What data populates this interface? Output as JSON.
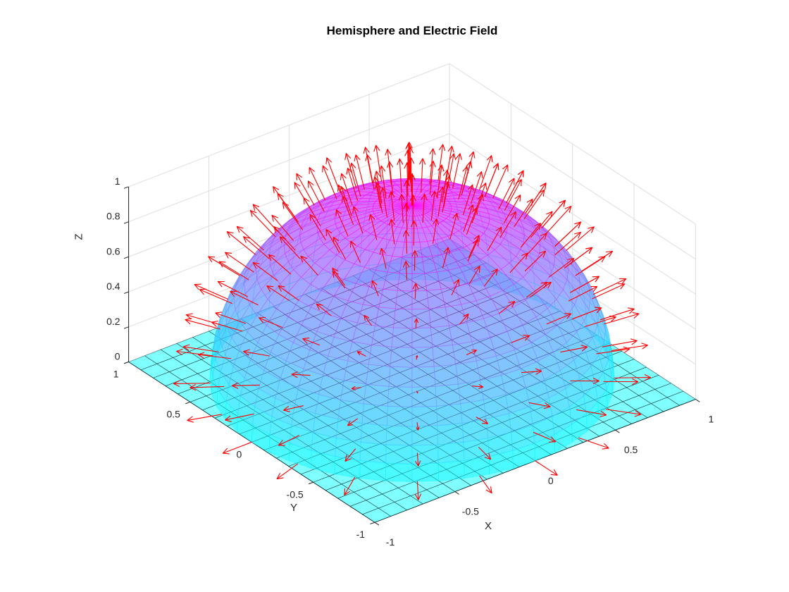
{
  "chart_data": {
    "type": "surface-quiver-3d",
    "title": "Hemisphere and Electric Field",
    "xlabel": "X",
    "ylabel": "Y",
    "zlabel": "Z",
    "view": {
      "azimuth_deg": -37.5,
      "elevation_deg": 30,
      "projection": "orthographic"
    },
    "axes": {
      "xlim": [
        -1,
        1
      ],
      "ylim": [
        -1,
        1
      ],
      "zlim": [
        0,
        1
      ],
      "xticks": [
        -1,
        -0.5,
        0,
        0.5,
        1
      ],
      "xtick_labels": [
        "-1",
        "-0.5",
        "0",
        "0.5",
        "1"
      ],
      "yticks": [
        -1,
        -0.5,
        0,
        0.5,
        1
      ],
      "ytick_labels": [
        "-1",
        "-0.5",
        "0",
        "0.5",
        "1"
      ],
      "zticks": [
        0,
        0.2,
        0.4,
        0.6,
        0.8,
        1
      ],
      "ztick_labels": [
        "0",
        "0.2",
        "0.4",
        "0.6",
        "0.8",
        "1"
      ],
      "grid": true,
      "grid_color": "#dedede",
      "axis_color": "#262626",
      "background": "#ffffff"
    },
    "plane": {
      "description": "flat square surface at z=0",
      "z": 0,
      "x_range": [
        -1,
        1
      ],
      "y_range": [
        -1,
        1
      ],
      "grid_divisions": 20,
      "face_color": "#00ffff",
      "face_alpha": 0.5,
      "edge_color": "#000000",
      "edge_alpha": 0.55
    },
    "hemisphere": {
      "description": "upper half of unit sphere centered at origin, colored by z (cool colormap)",
      "center": [
        0,
        0,
        0
      ],
      "radius": 1,
      "colormap": "cool",
      "color_bottom": "#00ffff",
      "color_top": "#ff00ff",
      "face_alpha": 0.45
    },
    "field": {
      "description": "electric field vectors normal to hemisphere surface (radial unit vectors)",
      "color": "#ff0000",
      "arrow_scale": 0.18,
      "azimuth_count": 21,
      "elevation_count": 11
    }
  }
}
